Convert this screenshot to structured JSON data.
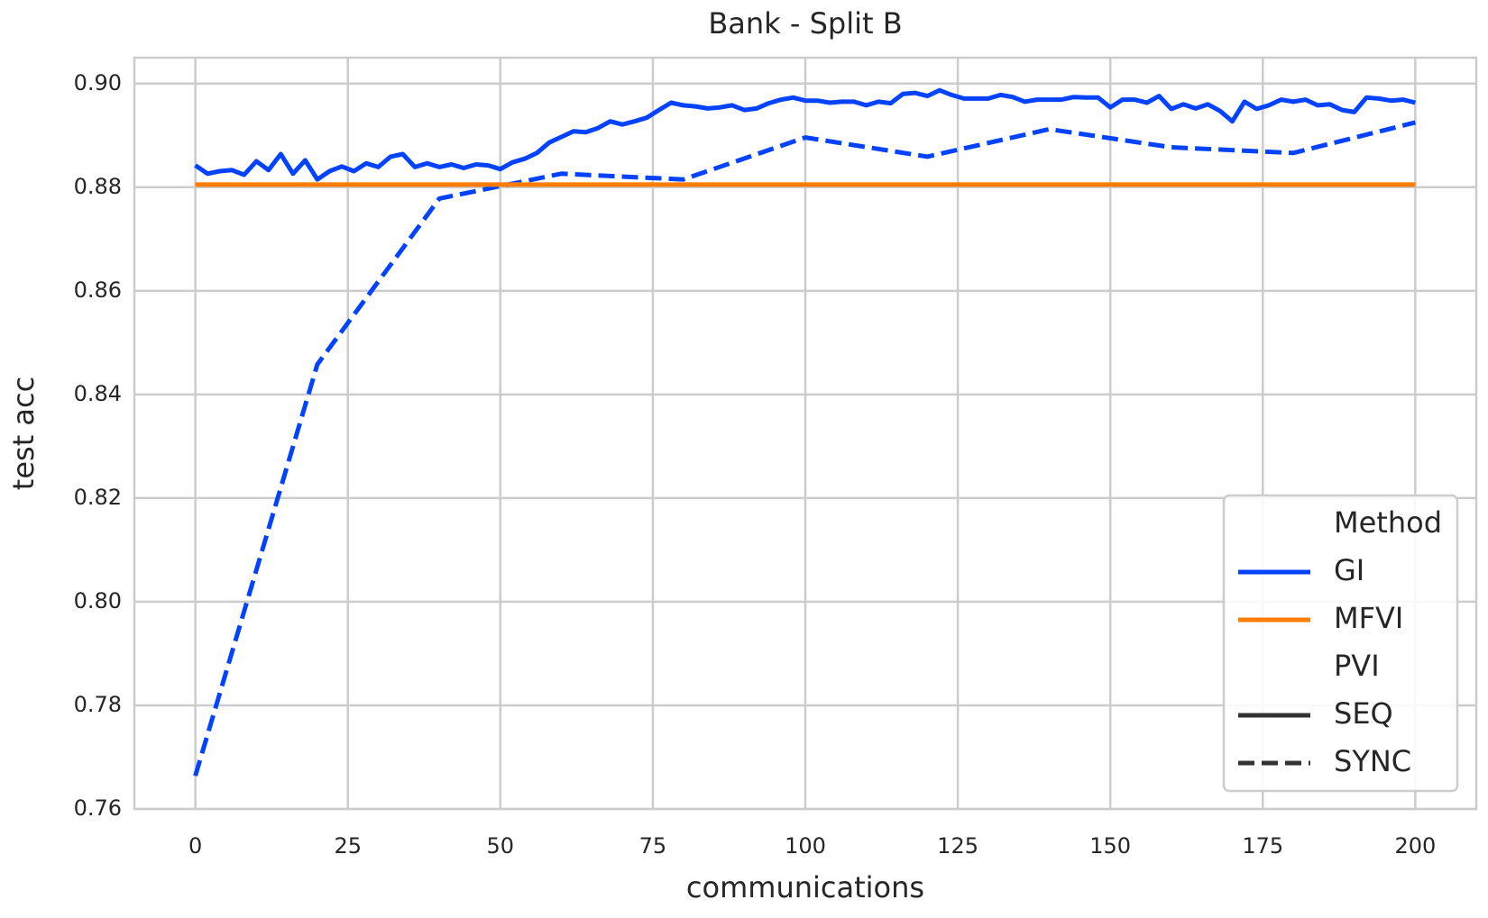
{
  "chart_data": {
    "type": "line",
    "title": "Bank - Split B",
    "x_label": "communications",
    "y_label": "test acc",
    "xlim": [
      -10,
      210
    ],
    "xticks": [
      0,
      25,
      50,
      75,
      100,
      125,
      150,
      175,
      200
    ],
    "ylim": [
      0.76,
      0.905
    ],
    "yticks": [
      {
        "value": 0.76,
        "label": "0.76"
      },
      {
        "value": 0.78,
        "label": "0.78"
      },
      {
        "value": 0.8,
        "label": "0.80"
      },
      {
        "value": 0.82,
        "label": "0.82"
      },
      {
        "value": 0.84,
        "label": "0.84"
      },
      {
        "value": 0.86,
        "label": "0.86"
      },
      {
        "value": 0.88,
        "label": "0.88"
      },
      {
        "value": 0.9,
        "label": "0.90"
      }
    ],
    "grid": true,
    "legend": {
      "position": "lower right",
      "title": "Method",
      "hue": [
        {
          "name": "GI",
          "color": "#0343ff"
        },
        {
          "name": "MFVI",
          "color": "#ff7c00"
        }
      ],
      "style_title": "PVI",
      "styles": [
        {
          "name": "SEQ",
          "dash": "solid"
        },
        {
          "name": "SYNC",
          "dash": "dashed"
        }
      ]
    },
    "series": [
      {
        "method": "GI",
        "pvi": "SEQ",
        "x": [
          0,
          2,
          4,
          6,
          8,
          10,
          12,
          14,
          16,
          18,
          20,
          22,
          24,
          26,
          28,
          30,
          32,
          34,
          36,
          38,
          40,
          42,
          44,
          46,
          48,
          50,
          52,
          54,
          56,
          58,
          60,
          62,
          64,
          66,
          68,
          70,
          72,
          74,
          76,
          78,
          80,
          82,
          84,
          86,
          88,
          90,
          92,
          94,
          96,
          98,
          100,
          102,
          104,
          106,
          108,
          110,
          112,
          114,
          116,
          118,
          120,
          122,
          124,
          126,
          128,
          130,
          132,
          134,
          136,
          138,
          140,
          142,
          144,
          146,
          148,
          150,
          152,
          154,
          156,
          158,
          160,
          162,
          164,
          166,
          168,
          170,
          172,
          174,
          176,
          178,
          180,
          182,
          184,
          186,
          188,
          190,
          192,
          194,
          196,
          198,
          200
        ],
        "values": [
          0.8842,
          0.8826,
          0.8831,
          0.8833,
          0.8824,
          0.885,
          0.8833,
          0.8864,
          0.8826,
          0.8852,
          0.8815,
          0.8831,
          0.884,
          0.8831,
          0.8846,
          0.8839,
          0.8859,
          0.8864,
          0.8839,
          0.8846,
          0.8839,
          0.8844,
          0.8837,
          0.8844,
          0.8842,
          0.8835,
          0.8848,
          0.8855,
          0.8866,
          0.8886,
          0.8897,
          0.8908,
          0.8906,
          0.8914,
          0.8927,
          0.8921,
          0.8927,
          0.8934,
          0.8949,
          0.8963,
          0.8958,
          0.8956,
          0.8952,
          0.8954,
          0.8958,
          0.8949,
          0.8952,
          0.8962,
          0.8969,
          0.8973,
          0.8967,
          0.8967,
          0.8963,
          0.8965,
          0.8965,
          0.8958,
          0.8965,
          0.8962,
          0.898,
          0.8982,
          0.8976,
          0.8987,
          0.8978,
          0.8971,
          0.8971,
          0.8971,
          0.8978,
          0.8974,
          0.8965,
          0.8969,
          0.8969,
          0.8969,
          0.8974,
          0.8973,
          0.8973,
          0.8954,
          0.8969,
          0.8969,
          0.8963,
          0.8976,
          0.8951,
          0.896,
          0.8952,
          0.896,
          0.8947,
          0.8927,
          0.8965,
          0.8951,
          0.8958,
          0.8969,
          0.8965,
          0.8969,
          0.8958,
          0.896,
          0.8949,
          0.8945,
          0.8973,
          0.8971,
          0.8967,
          0.8969,
          0.8963
        ]
      },
      {
        "method": "GI",
        "pvi": "SYNC",
        "x": [
          0,
          20,
          40,
          60,
          80,
          100,
          120,
          140,
          160,
          180,
          200
        ],
        "values": [
          0.7664,
          0.8458,
          0.8778,
          0.8826,
          0.8815,
          0.8896,
          0.8859,
          0.8912,
          0.8877,
          0.8866,
          0.8925
        ]
      },
      {
        "method": "MFVI",
        "pvi": "SEQ",
        "x": [
          0,
          200
        ],
        "values": [
          0.8805,
          0.8805
        ]
      }
    ]
  }
}
